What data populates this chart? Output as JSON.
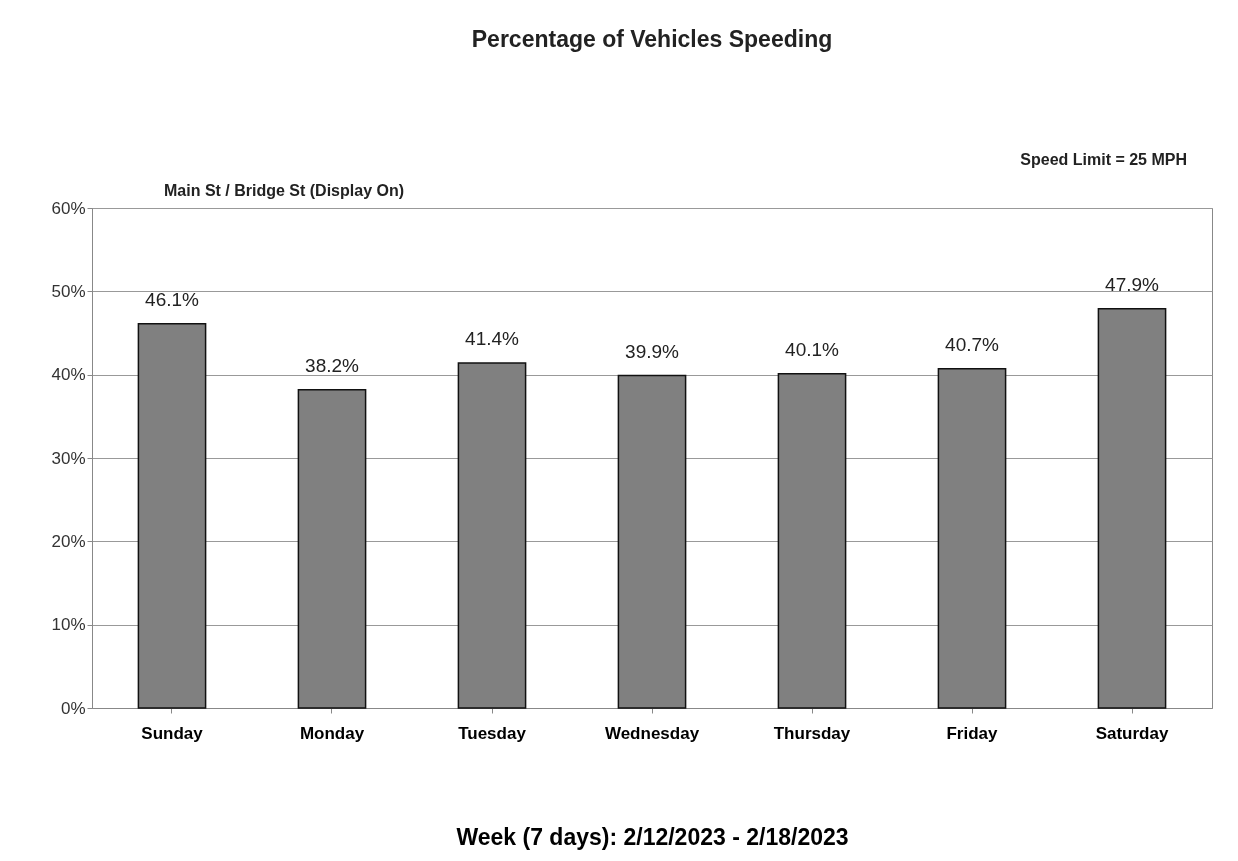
{
  "chart_data": {
    "type": "bar",
    "title": "Percentage of Vehicles Speeding",
    "xlabel": "Week (7 days): 2/12/2023 - 2/18/2023",
    "categories": [
      "Sunday",
      "Monday",
      "Tuesday",
      "Wednesday",
      "Thursday",
      "Friday",
      "Saturday"
    ],
    "values": [
      46.1,
      38.2,
      41.4,
      39.9,
      40.1,
      40.7,
      47.9
    ],
    "value_labels": [
      "46.1%",
      "38.2%",
      "41.4%",
      "39.9%",
      "40.1%",
      "40.7%",
      "47.9%"
    ],
    "color": "#808080",
    "ylim": [
      0,
      60
    ],
    "yticks": [
      {
        "value": 0,
        "label": "0%"
      },
      {
        "value": 10,
        "label": "10%"
      },
      {
        "value": 20,
        "label": "20%"
      },
      {
        "value": 30,
        "label": "30%"
      },
      {
        "value": 40,
        "label": "40%"
      },
      {
        "value": 50,
        "label": "50%"
      },
      {
        "value": 60,
        "label": "60%"
      }
    ],
    "grid": "y",
    "annotations": [
      "Main St / Bridge St (Display On)",
      "Speed Limit = 25 MPH"
    ]
  }
}
